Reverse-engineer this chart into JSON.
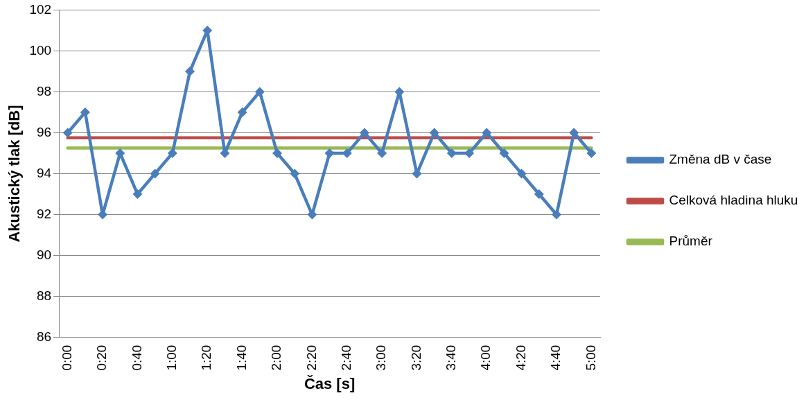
{
  "chart_data": {
    "type": "line",
    "xlabel": "Čas [s]",
    "ylabel": "Akustický tlak [dB]",
    "categories": [
      "0:00",
      null,
      "0:20",
      null,
      "0:40",
      null,
      "1:00",
      null,
      "1:20",
      null,
      "1:40",
      null,
      "2:00",
      null,
      "2:20",
      null,
      "2:40",
      null,
      "3:00",
      null,
      "3:20",
      null,
      "3:40",
      null,
      "4:00",
      null,
      "4:20",
      null,
      "4:40",
      null,
      "5:00"
    ],
    "series": [
      {
        "name": "Změna dB v čase",
        "color": "#4a7ebb",
        "marker": "diamond",
        "values": [
          96,
          97,
          92,
          95,
          93,
          94,
          95,
          99,
          101,
          95,
          97,
          98,
          95,
          94,
          92,
          95,
          95,
          96,
          95,
          98,
          94,
          96,
          95,
          95,
          96,
          95,
          94,
          93,
          92,
          96,
          95
        ]
      },
      {
        "name": "Celková hladina hluku",
        "color": "#be4b48",
        "marker": "none",
        "values": [
          95.75,
          95.75,
          95.75,
          95.75,
          95.75,
          95.75,
          95.75,
          95.75,
          95.75,
          95.75,
          95.75,
          95.75,
          95.75,
          95.75,
          95.75,
          95.75,
          95.75,
          95.75,
          95.75,
          95.75,
          95.75,
          95.75,
          95.75,
          95.75,
          95.75,
          95.75,
          95.75,
          95.75,
          95.75,
          95.75,
          95.75
        ]
      },
      {
        "name": "Průměr",
        "color": "#98b954",
        "marker": "none",
        "values": [
          95.25,
          95.25,
          95.25,
          95.25,
          95.25,
          95.25,
          95.25,
          95.25,
          95.25,
          95.25,
          95.25,
          95.25,
          95.25,
          95.25,
          95.25,
          95.25,
          95.25,
          95.25,
          95.25,
          95.25,
          95.25,
          95.25,
          95.25,
          95.25,
          95.25,
          95.25,
          95.25,
          95.25,
          95.25,
          95.25,
          95.25
        ]
      }
    ],
    "ylim": [
      86,
      102
    ],
    "yticks": [
      86,
      88,
      90,
      92,
      94,
      96,
      98,
      100,
      102
    ],
    "grid": "y",
    "legend": "right"
  }
}
